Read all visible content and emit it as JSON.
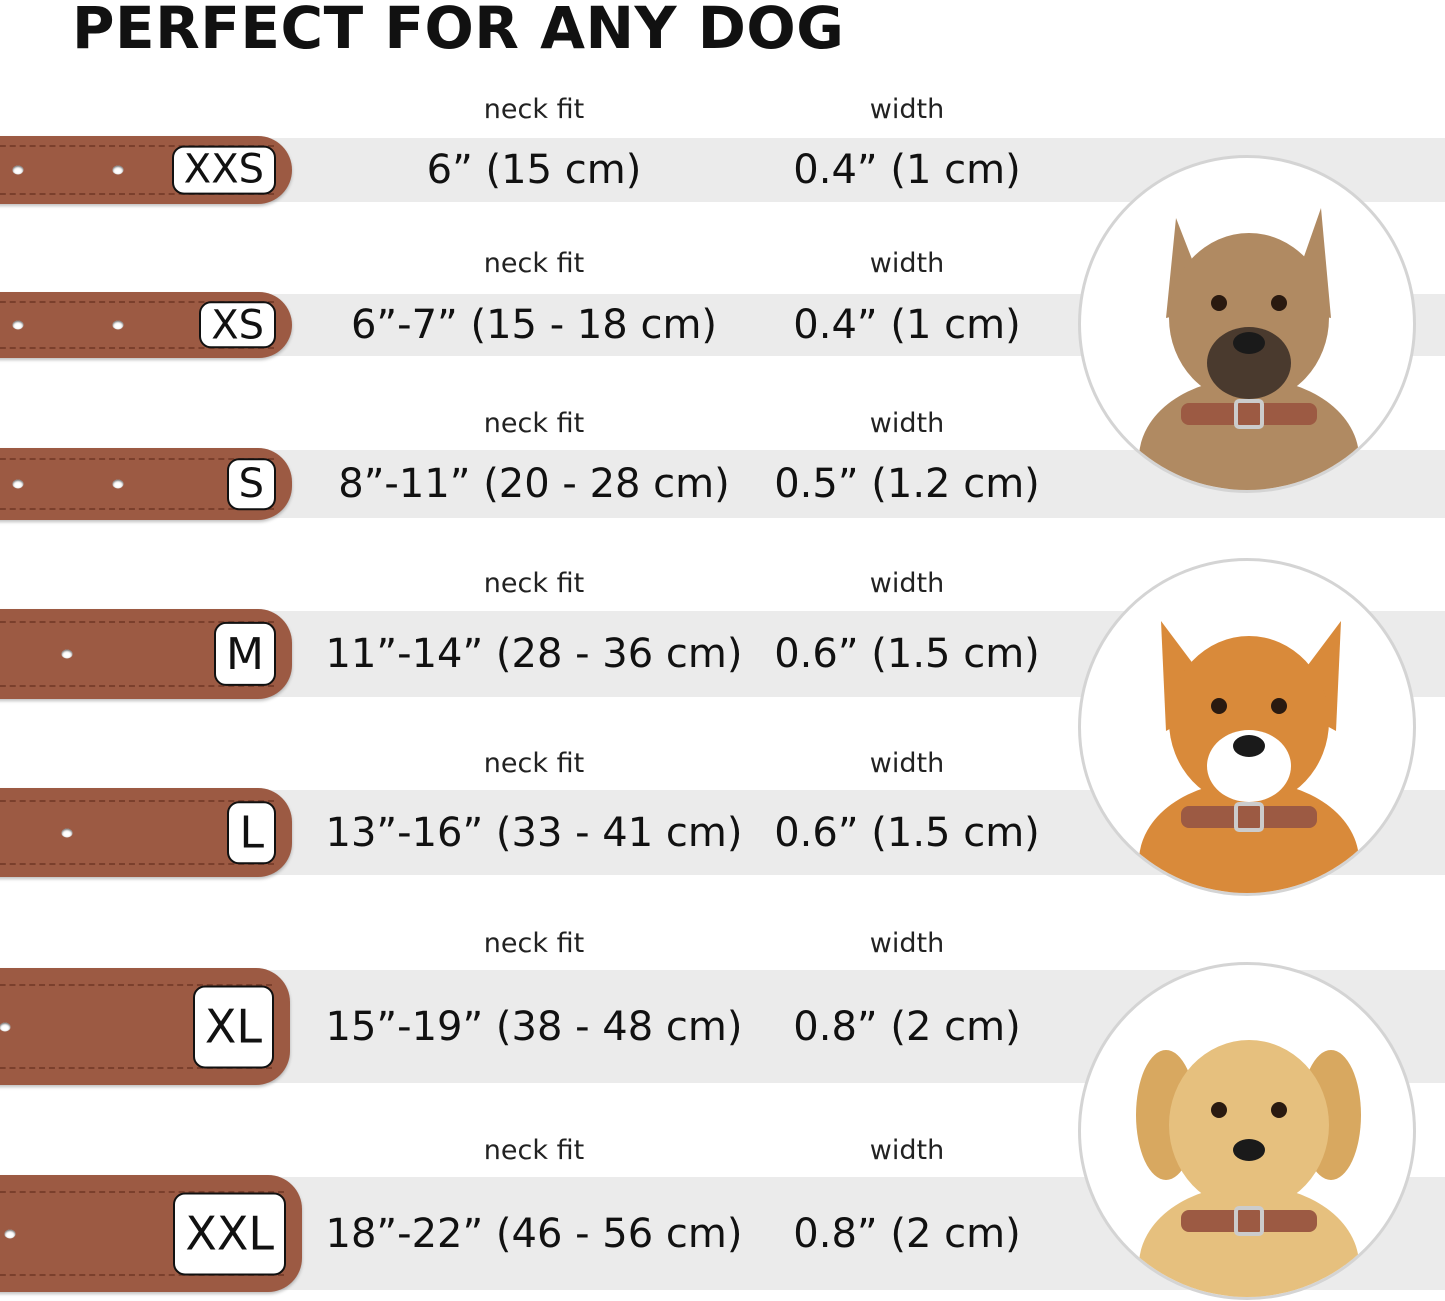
{
  "title": "PERFECT FOR ANY DOG",
  "labels": {
    "neck_fit": "neck fit",
    "width": "width"
  },
  "colors": {
    "collar": "#9c5a43",
    "band": "#ebebeb"
  },
  "sizes": [
    {
      "size": "XXS",
      "neck_fit": "6” (15 cm)",
      "width": "0.4” (1 cm)"
    },
    {
      "size": "XS",
      "neck_fit": "6”-7” (15 - 18 cm)",
      "width": "0.4” (1 cm)"
    },
    {
      "size": "S",
      "neck_fit": "8”-11” (20 - 28 cm)",
      "width": "0.5” (1.2 cm)"
    },
    {
      "size": "M",
      "neck_fit": "11”-14” (28 - 36 cm)",
      "width": "0.6” (1.5 cm)"
    },
    {
      "size": "L",
      "neck_fit": "13”-16” (33 - 41 cm)",
      "width": "0.6” (1.5 cm)"
    },
    {
      "size": "XL",
      "neck_fit": "15”-19” (38 - 48 cm)",
      "width": "0.8” (2 cm)"
    },
    {
      "size": "XXL",
      "neck_fit": "18”-22” (46 - 56 cm)",
      "width": "0.8” (2 cm)"
    }
  ],
  "dog_photos": [
    {
      "icon": "small-terrier-dog-photo",
      "fur": "#b08a62",
      "face": "#4a3a2e"
    },
    {
      "icon": "corgi-dog-photo",
      "fur": "#d98a3a",
      "face": "#ffffff"
    },
    {
      "icon": "labrador-dog-photo",
      "fur": "#e6c07e",
      "face": "#e6c07e"
    }
  ]
}
